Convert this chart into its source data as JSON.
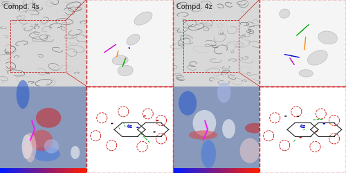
{
  "title": "",
  "left_label": "Compd. 4s",
  "right_label": "Compd. 4z",
  "label_fontsize": 7,
  "label_color": "#222222",
  "background_color": "#ffffff",
  "border_color": "#cc2222",
  "figsize": [
    5.0,
    2.51
  ],
  "dpi": 100
}
